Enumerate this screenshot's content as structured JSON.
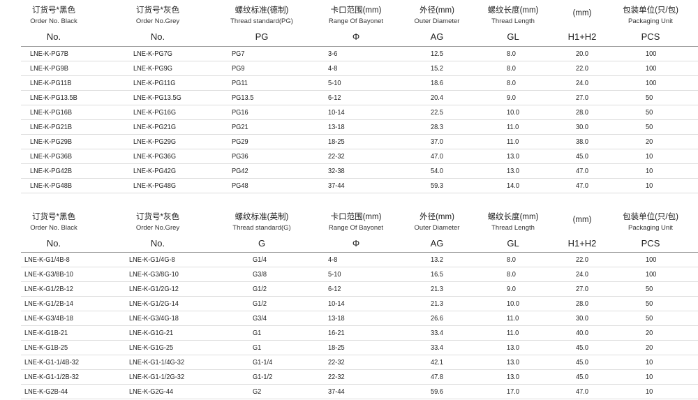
{
  "tables": [
    {
      "header": [
        {
          "cn": "订货号*黑色",
          "en": "Order No. Black",
          "code": "No."
        },
        {
          "cn": "订货号*灰色",
          "en": "Order No.Grey",
          "code": "No."
        },
        {
          "cn": "螺纹标准(德制)",
          "en": "Thread standard(PG)",
          "code": "PG"
        },
        {
          "cn": "卡口范围(mm)",
          "en": "Range Of Bayonet",
          "code": "Φ"
        },
        {
          "cn": "外径(mm)",
          "en": "Outer Diameter",
          "code": "AG"
        },
        {
          "cn": "螺纹长度(mm)",
          "en": "Thread Length",
          "code": "GL"
        },
        {
          "cn": "(mm)",
          "code": "H1+H2"
        },
        {
          "cn": "包装单位(只/包)",
          "en": "Packaging Unit",
          "code": "PCS"
        }
      ],
      "rows": [
        [
          "LNE-K-PG7B",
          "LNE-K-PG7G",
          "PG7",
          "3-6",
          "12.5",
          "8.0",
          "20.0",
          "100"
        ],
        [
          "LNE-K-PG9B",
          "LNE-K-PG9G",
          "PG9",
          "4-8",
          "15.2",
          "8.0",
          "22.0",
          "100"
        ],
        [
          "LNE-K-PG11B",
          "LNE-K-PG11G",
          "PG11",
          "5-10",
          "18.6",
          "8.0",
          "24.0",
          "100"
        ],
        [
          "LNE-K-PG13.5B",
          "LNE-K-PG13.5G",
          "PG13.5",
          "6-12",
          "20.4",
          "9.0",
          "27.0",
          "50"
        ],
        [
          "LNE-K-PG16B",
          "LNE-K-PG16G",
          "PG16",
          "10-14",
          "22.5",
          "10.0",
          "28.0",
          "50"
        ],
        [
          "LNE-K-PG21B",
          "LNE-K-PG21G",
          "PG21",
          "13-18",
          "28.3",
          "11.0",
          "30.0",
          "50"
        ],
        [
          "LNE-K-PG29B",
          "LNE-K-PG29G",
          "PG29",
          "18-25",
          "37.0",
          "11.0",
          "38.0",
          "20"
        ],
        [
          "LNE-K-PG36B",
          "LNE-K-PG36G",
          "PG36",
          "22-32",
          "47.0",
          "13.0",
          "45.0",
          "10"
        ],
        [
          "LNE-K-PG42B",
          "LNE-K-PG42G",
          "PG42",
          "32-38",
          "54.0",
          "13.0",
          "47.0",
          "10"
        ],
        [
          "LNE-K-PG48B",
          "LNE-K-PG48G",
          "PG48",
          "37-44",
          "59.3",
          "14.0",
          "47.0",
          "10"
        ]
      ]
    },
    {
      "header": [
        {
          "cn": "订货号*黑色",
          "en": "Order No. Black",
          "code": "No."
        },
        {
          "cn": "订货号*灰色",
          "en": "Order No.Grey",
          "code": "No."
        },
        {
          "cn": "螺纹标准(英制)",
          "en": "Thread standard(G)",
          "code": "G"
        },
        {
          "cn": "卡口范围(mm)",
          "en": "Range Of Bayonet",
          "code": "Φ"
        },
        {
          "cn": "外径(mm)",
          "en": "Outer Diameter",
          "code": "AG"
        },
        {
          "cn": "螺纹长度(mm)",
          "en": "Thread Length",
          "code": "GL"
        },
        {
          "cn": "(mm)",
          "code": "H1+H2"
        },
        {
          "cn": "包装单位(只/包)",
          "en": "Packaging Unit",
          "code": "PCS"
        }
      ],
      "rows": [
        [
          "LNE-K-G1/4B-8",
          "LNE-K-G1/4G-8",
          "G1/4",
          "4-8",
          "13.2",
          "8.0",
          "22.0",
          "100"
        ],
        [
          "LNE-K-G3/8B-10",
          "LNE-K-G3/8G-10",
          "G3/8",
          "5-10",
          "16.5",
          "8.0",
          "24.0",
          "100"
        ],
        [
          "LNE-K-G1/2B-12",
          "LNE-K-G1/2G-12",
          "G1/2",
          "6-12",
          "21.3",
          "9.0",
          "27.0",
          "50"
        ],
        [
          "LNE-K-G1/2B-14",
          "LNE-K-G1/2G-14",
          "G1/2",
          "10-14",
          "21.3",
          "10.0",
          "28.0",
          "50"
        ],
        [
          "LNE-K-G3/4B-18",
          "LNE-K-G3/4G-18",
          "G3/4",
          "13-18",
          "26.6",
          "11.0",
          "30.0",
          "50"
        ],
        [
          "LNE-K-G1B-21",
          "LNE-K-G1G-21",
          "G1",
          "16-21",
          "33.4",
          "11.0",
          "40.0",
          "20"
        ],
        [
          "LNE-K-G1B-25",
          "LNE-K-G1G-25",
          "G1",
          "18-25",
          "33.4",
          "13.0",
          "45.0",
          "20"
        ],
        [
          "LNE-K-G1-1/4B-32",
          "LNE-K-G1-1/4G-32",
          "G1-1/4",
          "22-32",
          "42.1",
          "13.0",
          "45.0",
          "10"
        ],
        [
          "LNE-K-G1-1/2B-32",
          "LNE-K-G1-1/2G-32",
          "G1-1/2",
          "22-32",
          "47.8",
          "13.0",
          "45.0",
          "10"
        ],
        [
          "LNE-K-G2B-44",
          "LNE-K-G2G-44",
          "G2",
          "37-44",
          "59.6",
          "17.0",
          "47.0",
          "10"
        ]
      ]
    }
  ]
}
